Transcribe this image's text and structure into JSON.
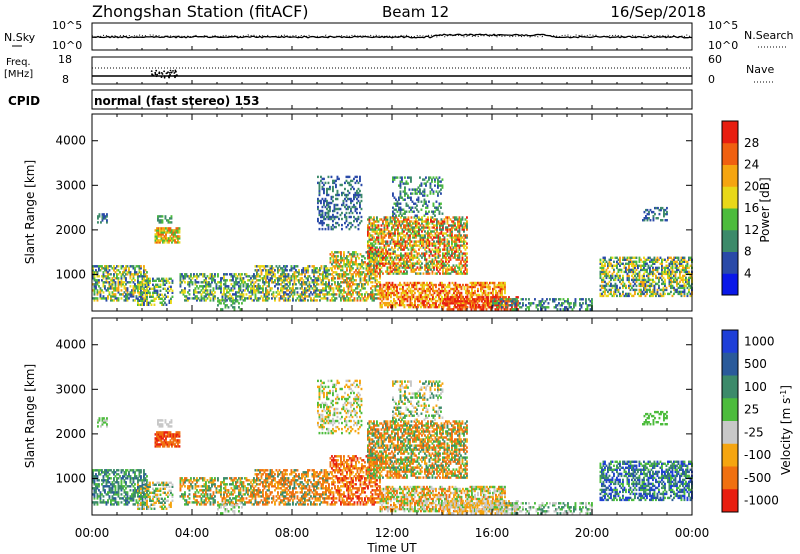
{
  "header": {
    "station": "Zhongshan Station (fitACF)",
    "beam": "Beam 12",
    "date": "16/Sep/2018"
  },
  "noise_panel": {
    "left_label": "N.Sky",
    "left_ticks": [
      "10^5",
      "10^0"
    ],
    "right_label": "N.Search",
    "right_ticks": [
      "10^5",
      "10^0"
    ]
  },
  "freq_panel": {
    "left_label_1": "Freq.",
    "left_label_2": "[MHz]",
    "left_ticks": [
      "18",
      "8"
    ],
    "right_label": "Nave",
    "right_ticks": [
      "60",
      "0"
    ]
  },
  "cpid_panel": {
    "label": "CPID",
    "text": "normal (fast stereo) 153"
  },
  "colors": {
    "blue": "#1f3fd8",
    "navy": "#2a4aa8",
    "teal": "#3c8a6a",
    "green": "#4cbc3c",
    "gray": "#c8c8c8",
    "yellow": "#e8d818",
    "orange": "#f08c10",
    "red": "#e81e10"
  },
  "chart_data": [
    {
      "type": "heatmap",
      "name": "power",
      "xlabel": "",
      "ylabel": "Slant Range [km]",
      "yticks": [
        "1000",
        "2000",
        "3000",
        "4000"
      ],
      "ylim": [
        180,
        4600
      ],
      "xlim": [
        0,
        24
      ],
      "colorbar": {
        "label": "Power [dB]",
        "ticks": [
          "4",
          "8",
          "12",
          "16",
          "20",
          "24",
          "28"
        ],
        "colors": [
          "#0a18e8",
          "#2a4aa8",
          "#3c8a6a",
          "#4cbc3c",
          "#e8d818",
          "#f5a510",
          "#f06010",
          "#e81e10"
        ]
      }
    },
    {
      "type": "heatmap",
      "name": "velocity",
      "xlabel": "Time UT",
      "ylabel": "Slant Range [km]",
      "yticks": [
        "1000",
        "2000",
        "3000",
        "4000"
      ],
      "ylim": [
        180,
        4600
      ],
      "xlim": [
        0,
        24
      ],
      "xticks": [
        "00:00",
        "04:00",
        "08:00",
        "12:00",
        "16:00",
        "20:00",
        "00:00"
      ],
      "colorbar": {
        "label": "Velocity [m s",
        "label_sup": "-1",
        "label_close": "]",
        "ticks": [
          "1000",
          "500",
          "100",
          "25",
          "-25",
          "-100",
          "-500",
          "-1000"
        ],
        "colors": [
          "#1f3fd8",
          "#2a5a9a",
          "#3c8a6a",
          "#4cbc3c",
          "#c8c8c8",
          "#f5a510",
          "#f07010",
          "#e81e10"
        ]
      }
    }
  ]
}
